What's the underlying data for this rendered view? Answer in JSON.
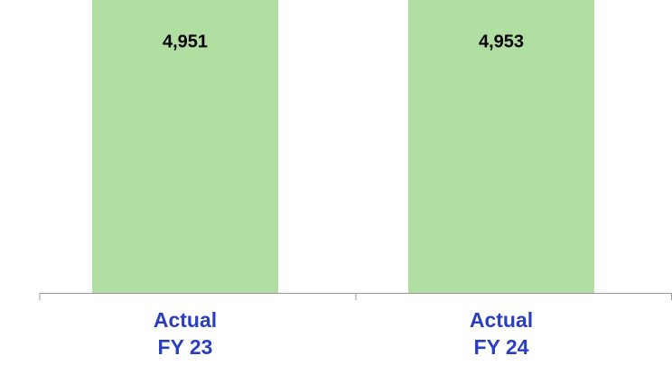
{
  "chart_data": {
    "type": "bar",
    "categories": [
      "Actual\nFY 23",
      "Actual\nFY 24"
    ],
    "values": [
      4951,
      4953
    ],
    "value_labels": [
      "4,951",
      "4,953"
    ],
    "color": "#b1dfa2",
    "ylim": [
      0,
      4800
    ]
  }
}
